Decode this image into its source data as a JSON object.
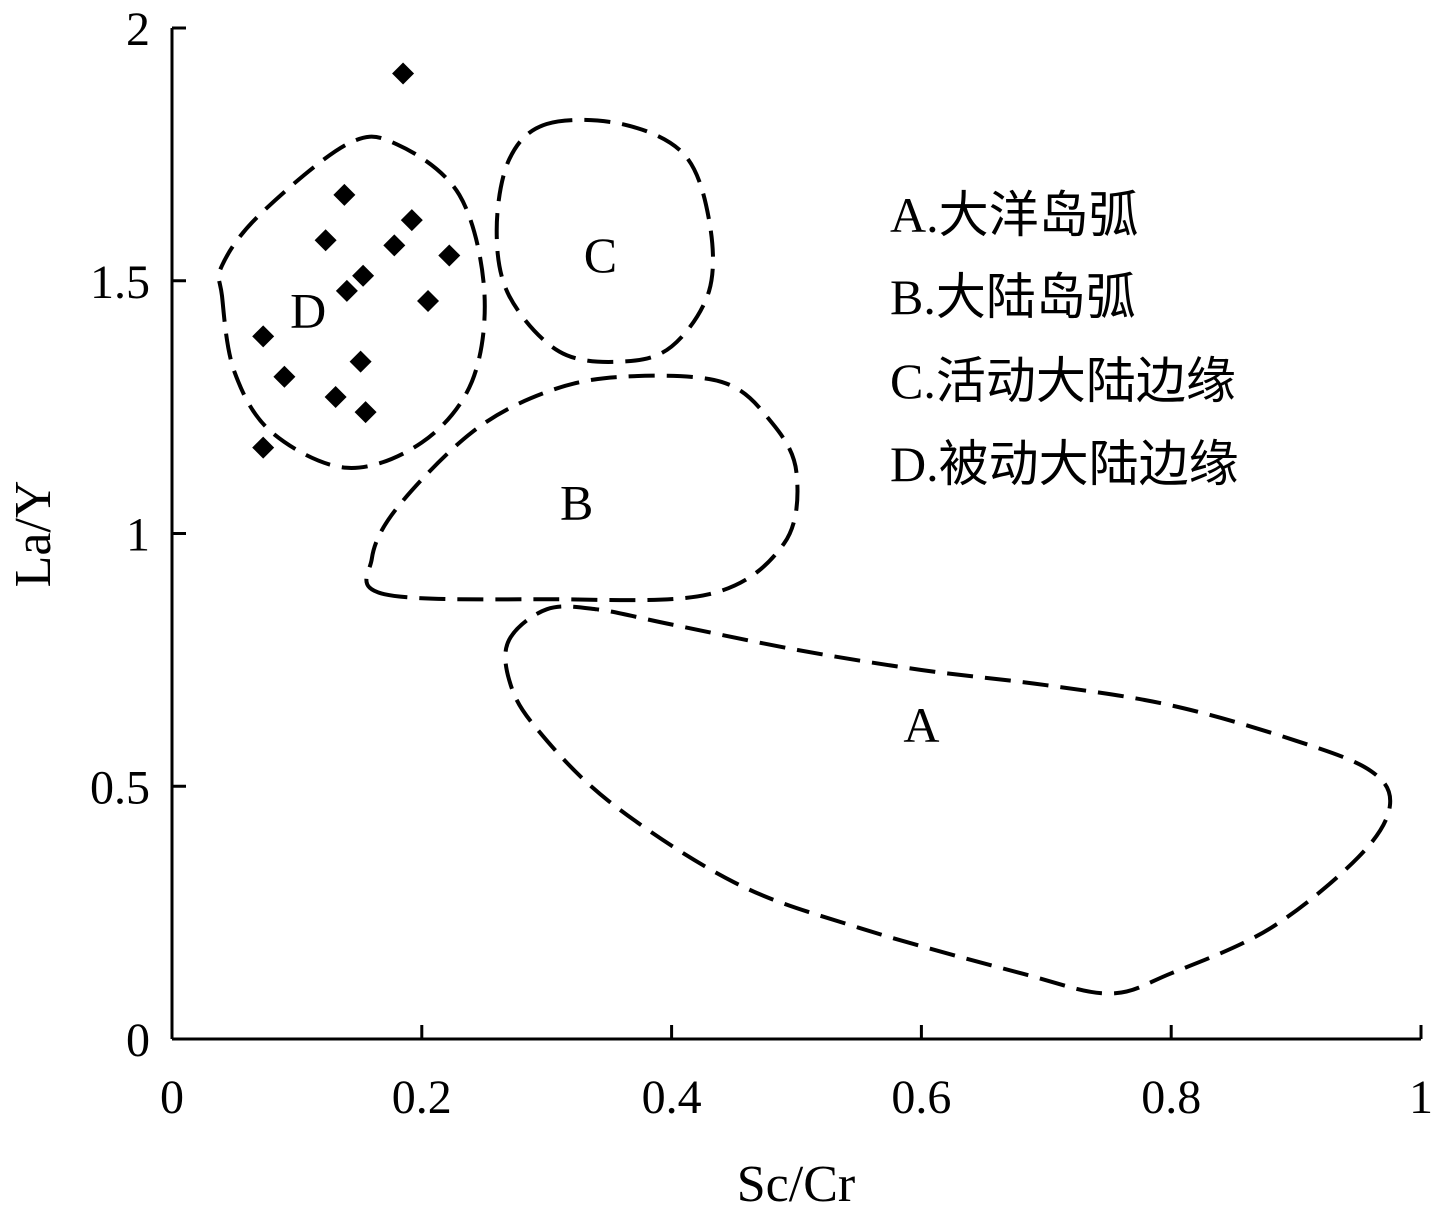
{
  "chart_data": {
    "type": "scatter",
    "title": "",
    "xlabel": "Sc/Cr",
    "ylabel": "La/Y",
    "xlim": [
      0,
      1
    ],
    "ylim": [
      0,
      2
    ],
    "x_ticks": [
      "0",
      "0.2",
      "0.4",
      "0.6",
      "0.8",
      "1"
    ],
    "y_ticks": [
      "0",
      "0.5",
      "1",
      "1.5",
      "2"
    ],
    "grid": false,
    "series": [
      {
        "marker": "diamond",
        "points": [
          {
            "x": 0.185,
            "y": 1.91
          },
          {
            "x": 0.138,
            "y": 1.67
          },
          {
            "x": 0.192,
            "y": 1.62
          },
          {
            "x": 0.123,
            "y": 1.58
          },
          {
            "x": 0.178,
            "y": 1.57
          },
          {
            "x": 0.222,
            "y": 1.55
          },
          {
            "x": 0.153,
            "y": 1.51
          },
          {
            "x": 0.14,
            "y": 1.48
          },
          {
            "x": 0.205,
            "y": 1.46
          },
          {
            "x": 0.073,
            "y": 1.39
          },
          {
            "x": 0.151,
            "y": 1.34
          },
          {
            "x": 0.09,
            "y": 1.31
          },
          {
            "x": 0.131,
            "y": 1.27
          },
          {
            "x": 0.155,
            "y": 1.24
          },
          {
            "x": 0.073,
            "y": 1.17
          }
        ]
      }
    ],
    "regions": [
      {
        "label": "A",
        "label_pos": {
          "x": 0.6,
          "y": 0.61
        },
        "outline": [
          [
            0.27,
            0.79
          ],
          [
            0.3,
            0.85
          ],
          [
            0.34,
            0.85
          ],
          [
            0.4,
            0.82
          ],
          [
            0.5,
            0.77
          ],
          [
            0.6,
            0.73
          ],
          [
            0.7,
            0.7
          ],
          [
            0.8,
            0.66
          ],
          [
            0.9,
            0.59
          ],
          [
            0.96,
            0.53
          ],
          [
            0.975,
            0.46
          ],
          [
            0.95,
            0.36
          ],
          [
            0.88,
            0.22
          ],
          [
            0.8,
            0.13
          ],
          [
            0.75,
            0.09
          ],
          [
            0.68,
            0.13
          ],
          [
            0.55,
            0.22
          ],
          [
            0.45,
            0.31
          ],
          [
            0.35,
            0.47
          ],
          [
            0.29,
            0.62
          ],
          [
            0.27,
            0.71
          ]
        ]
      },
      {
        "label": "B",
        "label_pos": {
          "x": 0.324,
          "y": 1.05
        },
        "outline": [
          [
            0.17,
            0.88
          ],
          [
            0.16,
            0.95
          ],
          [
            0.18,
            1.05
          ],
          [
            0.24,
            1.2
          ],
          [
            0.3,
            1.28
          ],
          [
            0.36,
            1.31
          ],
          [
            0.44,
            1.3
          ],
          [
            0.48,
            1.22
          ],
          [
            0.5,
            1.12
          ],
          [
            0.49,
            0.98
          ],
          [
            0.43,
            0.88
          ],
          [
            0.3,
            0.87
          ]
        ]
      },
      {
        "label": "C",
        "label_pos": {
          "x": 0.343,
          "y": 1.54
        },
        "outline": [
          [
            0.3,
            1.81
          ],
          [
            0.36,
            1.81
          ],
          [
            0.41,
            1.75
          ],
          [
            0.43,
            1.62
          ],
          [
            0.43,
            1.48
          ],
          [
            0.4,
            1.37
          ],
          [
            0.36,
            1.34
          ],
          [
            0.31,
            1.36
          ],
          [
            0.27,
            1.47
          ],
          [
            0.26,
            1.6
          ],
          [
            0.27,
            1.74
          ]
        ]
      },
      {
        "label": "D",
        "label_pos": {
          "x": 0.109,
          "y": 1.43
        },
        "outline": [
          [
            0.04,
            1.47
          ],
          [
            0.05,
            1.32
          ],
          [
            0.08,
            1.2
          ],
          [
            0.14,
            1.13
          ],
          [
            0.2,
            1.18
          ],
          [
            0.24,
            1.3
          ],
          [
            0.25,
            1.48
          ],
          [
            0.23,
            1.67
          ],
          [
            0.18,
            1.77
          ],
          [
            0.14,
            1.77
          ],
          [
            0.07,
            1.63
          ],
          [
            0.04,
            1.53
          ]
        ]
      }
    ],
    "legend": {
      "position": "top-right",
      "items": [
        "A.大洋岛弧",
        "B.大陆岛弧",
        "C.活动大陆边缘",
        "D.被动大陆边缘"
      ]
    }
  }
}
